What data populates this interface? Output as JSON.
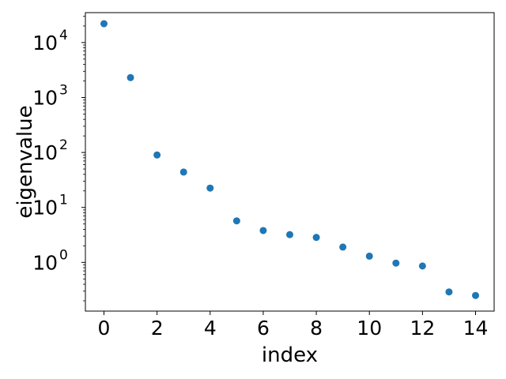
{
  "chart_data": {
    "type": "scatter",
    "xlabel": "index",
    "ylabel": "eigenvalue",
    "yscale": "log",
    "xlim": [
      -0.7,
      14.7
    ],
    "ylim": [
      0.13,
      35000
    ],
    "x_ticks": [
      0,
      2,
      4,
      6,
      8,
      10,
      12,
      14
    ],
    "y_ticks": [
      {
        "value": 1,
        "base": "10",
        "exp": "0"
      },
      {
        "value": 10,
        "base": "10",
        "exp": "1"
      },
      {
        "value": 100,
        "base": "10",
        "exp": "2"
      },
      {
        "value": 1000,
        "base": "10",
        "exp": "3"
      },
      {
        "value": 10000,
        "base": "10",
        "exp": "4"
      }
    ],
    "grid": false,
    "marker_color": "#1f77b4",
    "series": [
      {
        "x": [
          0,
          1,
          2,
          3,
          4,
          5,
          6,
          7,
          8,
          9,
          10,
          11,
          12,
          13,
          14
        ],
        "y": [
          22000,
          2300,
          90,
          44,
          22.5,
          5.7,
          3.8,
          3.2,
          2.85,
          1.9,
          1.3,
          0.97,
          0.86,
          0.29,
          0.25
        ]
      }
    ]
  }
}
